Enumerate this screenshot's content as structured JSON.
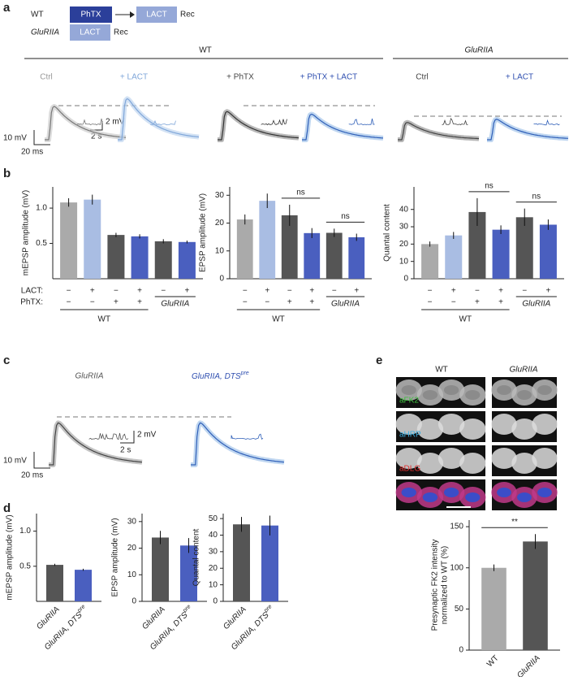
{
  "panel_labels": [
    "a",
    "b",
    "c",
    "d",
    "e"
  ],
  "panel_a": {
    "schematic": {
      "wt": "WT",
      "phtx": "PhTX",
      "lact_1": "LACT",
      "rec_1": "Rec",
      "gluriia": "GluRIIA",
      "lact_2": "LACT",
      "rec_2": "Rec"
    },
    "group_wt": "WT",
    "group_gluriia": "GluRIIA",
    "conditions": [
      "Ctrl",
      "+ LACT",
      "+ PhTX",
      "+ PhTX + LACT",
      "Ctrl",
      "+ LACT"
    ],
    "scale_v": "10 mV",
    "scale_t": "20 ms",
    "inset_v": "2 mV",
    "inset_t": "2 s"
  },
  "panel_c": {
    "trace_1": "GluRIIA",
    "trace_2": "GluRIIA, DTS",
    "trace_2_sup": "pre",
    "scale_v": "10 mV",
    "scale_t": "20 ms",
    "inset_v": "2 mV",
    "inset_t": "2 s"
  },
  "panel_e": {
    "columns": [
      "WT",
      "GluRIIA"
    ],
    "stains": [
      "aFK2",
      "aHRP",
      "aDLG"
    ]
  },
  "chart_data": [
    {
      "type": "bar",
      "ylabel": "mEPSP amplitude (mV)",
      "values": [
        1.08,
        1.12,
        0.62,
        0.6,
        0.53,
        0.52
      ],
      "errors": [
        0.06,
        0.07,
        0.03,
        0.03,
        0.03,
        0.02
      ],
      "colors": [
        "#aaaaaa",
        "#a9bde3",
        "#555555",
        "#4a5fbf",
        "#555555",
        "#4a5fbf"
      ],
      "ylim": [
        0,
        1.3
      ],
      "yticks": [
        0.5,
        {
          "value": 1,
          "label": "1.0"
        }
      ],
      "sign_row_labels": [
        "LACT:",
        "PhTX:"
      ],
      "sign_rows": [
        [
          "−",
          "+",
          "−",
          "+",
          "−",
          "+"
        ],
        [
          "−",
          "−",
          "+",
          "+"
        ]
      ],
      "groups": [
        "WT",
        "GluRIIA"
      ]
    },
    {
      "type": "bar",
      "ylabel": "EPSP amplitude (mV)",
      "values": [
        21.3,
        28,
        22.8,
        16.4,
        16.5,
        14.9
      ],
      "errors": [
        1.8,
        2.6,
        3.8,
        1.8,
        1.5,
        1.3
      ],
      "colors": [
        "#aaaaaa",
        "#a9bde3",
        "#555555",
        "#4a5fbf",
        "#555555",
        "#4a5fbf"
      ],
      "ylim": [
        0,
        33
      ],
      "yticks": [
        0,
        10,
        20,
        30
      ],
      "sign_rows": [
        [
          "−",
          "+",
          "−",
          "+",
          "−",
          "+"
        ],
        [
          "−",
          "−",
          "+",
          "+"
        ]
      ],
      "groups": [
        "WT",
        "GluRIIA"
      ],
      "annotations": [
        "ns",
        "ns"
      ]
    },
    {
      "type": "bar",
      "ylabel": "Quantal content",
      "values": [
        20,
        25,
        38.5,
        28.3,
        35.5,
        31.2
      ],
      "errors": [
        1.5,
        2,
        8,
        2.5,
        5,
        3
      ],
      "colors": [
        "#aaaaaa",
        "#a9bde3",
        "#555555",
        "#4a5fbf",
        "#555555",
        "#4a5fbf"
      ],
      "ylim": [
        0,
        53
      ],
      "yticks": [
        0,
        10,
        20,
        30,
        40
      ],
      "sign_rows": [
        [
          "−",
          "+",
          "−",
          "+",
          "−",
          "+"
        ],
        [
          "−",
          "−",
          "+",
          "+"
        ]
      ],
      "groups": [
        "WT",
        "GluRIIA"
      ],
      "annotations": [
        "ns",
        "ns"
      ]
    },
    {
      "type": "bar",
      "ylabel": "mEPSP amplitude (mV)",
      "categories": [
        "GluRIIA",
        "GluRIIA, DTS"
      ],
      "category_superscripts": [
        null,
        "pre"
      ],
      "values": [
        0.52,
        0.45
      ],
      "errors": [
        0.015,
        0.015
      ],
      "colors": [
        "#555555",
        "#4a5fbf"
      ],
      "ylim": [
        0,
        1.25
      ],
      "yticks": [
        0.5,
        {
          "value": 1,
          "label": "1.0"
        }
      ]
    },
    {
      "type": "bar",
      "ylabel": "EPSP amplitude (mV)",
      "categories": [
        "GluRIIA",
        "GluRIIA, DTS"
      ],
      "category_superscripts": [
        null,
        "pre"
      ],
      "values": [
        24,
        21
      ],
      "errors": [
        2.5,
        2.8
      ],
      "colors": [
        "#555555",
        "#4a5fbf"
      ],
      "ylim": [
        0,
        33
      ],
      "yticks": [
        0,
        10,
        20,
        30
      ]
    },
    {
      "type": "bar",
      "ylabel": "Quantal content",
      "categories": [
        "GluRIIA",
        "GluRIIA, DTS"
      ],
      "category_superscripts": [
        null,
        "pre"
      ],
      "values": [
        46.5,
        45.8
      ],
      "errors": [
        4.5,
        6
      ],
      "colors": [
        "#555555",
        "#4a5fbf"
      ],
      "ylim": [
        0,
        53
      ],
      "yticks": [
        0,
        10,
        20,
        30,
        40,
        50
      ]
    },
    {
      "type": "bar",
      "ylabel": [
        "Presynaptic FK2 intensity",
        "normalized to WT (%)"
      ],
      "categories": [
        "WT",
        "GluRIIA"
      ],
      "values": [
        100,
        132
      ],
      "errors": [
        4,
        9
      ],
      "colors": [
        "#aaaaaa",
        "#555555"
      ],
      "ylim": [
        0,
        158
      ],
      "yticks": [
        0,
        50,
        100,
        150
      ],
      "annotations": [
        "**"
      ]
    }
  ]
}
